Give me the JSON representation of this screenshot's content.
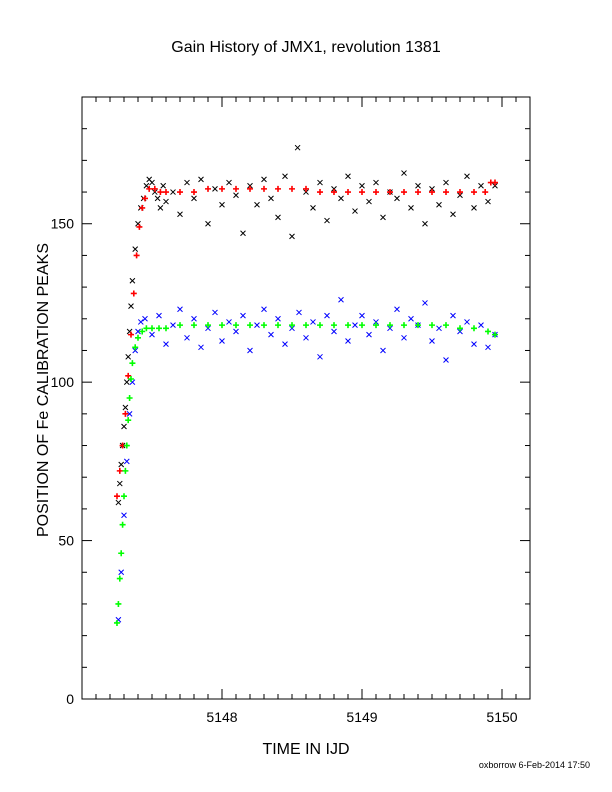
{
  "chart_data": {
    "type": "scatter",
    "title": "Gain History of JMX1, revolution 1381",
    "xlabel": "TIME IN IJD",
    "ylabel": "POSITION OF Fe CALIBRATION PEAKS",
    "xlim": [
      5147.0,
      5150.2
    ],
    "ylim": [
      0,
      190
    ],
    "x_ticks": [
      5148,
      5149,
      5150
    ],
    "y_ticks": [
      0,
      50,
      100,
      150
    ],
    "grid": false,
    "series": [
      {
        "marker": "x",
        "color": "#000000",
        "description": "high peak measurements",
        "x": [
          5147.26,
          5147.27,
          5147.28,
          5147.29,
          5147.3,
          5147.31,
          5147.32,
          5147.33,
          5147.34,
          5147.35,
          5147.36,
          5147.38,
          5147.4,
          5147.42,
          5147.44,
          5147.46,
          5147.48,
          5147.5,
          5147.52,
          5147.54,
          5147.56,
          5147.58,
          5147.6,
          5147.65,
          5147.7,
          5147.75,
          5147.8,
          5147.85,
          5147.9,
          5147.95,
          5148.0,
          5148.05,
          5148.1,
          5148.15,
          5148.2,
          5148.25,
          5148.3,
          5148.35,
          5148.4,
          5148.45,
          5148.5,
          5148.54,
          5148.6,
          5148.65,
          5148.7,
          5148.75,
          5148.8,
          5148.85,
          5148.9,
          5148.95,
          5149.0,
          5149.05,
          5149.1,
          5149.15,
          5149.2,
          5149.25,
          5149.3,
          5149.35,
          5149.4,
          5149.45,
          5149.5,
          5149.55,
          5149.6,
          5149.65,
          5149.7,
          5149.75,
          5149.8,
          5149.85,
          5149.9,
          5149.95
        ],
        "y": [
          62,
          68,
          74,
          80,
          86,
          92,
          100,
          108,
          116,
          124,
          132,
          142,
          150,
          155,
          158,
          162,
          164,
          163,
          160,
          158,
          155,
          162,
          157,
          160,
          153,
          163,
          158,
          164,
          150,
          161,
          156,
          163,
          159,
          147,
          162,
          156,
          164,
          158,
          152,
          165,
          146,
          174,
          160,
          155,
          163,
          151,
          161,
          158,
          165,
          154,
          162,
          157,
          163,
          152,
          160,
          158,
          166,
          155,
          162,
          150,
          161,
          156,
          163,
          153,
          159,
          165,
          155,
          162,
          157,
          162
        ]
      },
      {
        "marker": "x",
        "color": "#0000ff",
        "description": "low peak measurements",
        "x": [
          5147.26,
          5147.28,
          5147.3,
          5147.32,
          5147.34,
          5147.36,
          5147.38,
          5147.4,
          5147.42,
          5147.45,
          5147.5,
          5147.55,
          5147.6,
          5147.65,
          5147.7,
          5147.75,
          5147.8,
          5147.85,
          5147.9,
          5147.95,
          5148.0,
          5148.05,
          5148.1,
          5148.15,
          5148.2,
          5148.25,
          5148.3,
          5148.35,
          5148.4,
          5148.45,
          5148.5,
          5148.55,
          5148.6,
          5148.65,
          5148.7,
          5148.75,
          5148.8,
          5148.85,
          5148.9,
          5148.95,
          5149.0,
          5149.05,
          5149.1,
          5149.15,
          5149.2,
          5149.25,
          5149.3,
          5149.35,
          5149.4,
          5149.45,
          5149.5,
          5149.55,
          5149.6,
          5149.65,
          5149.7,
          5149.75,
          5149.8,
          5149.85,
          5149.9,
          5149.95
        ],
        "y": [
          25,
          40,
          58,
          75,
          90,
          100,
          110,
          116,
          119,
          120,
          115,
          121,
          112,
          118,
          123,
          114,
          120,
          111,
          117,
          122,
          113,
          119,
          116,
          121,
          110,
          118,
          123,
          115,
          120,
          112,
          117,
          122,
          114,
          119,
          108,
          121,
          116,
          126,
          113,
          118,
          121,
          115,
          119,
          110,
          117,
          123,
          114,
          120,
          118,
          125,
          113,
          117,
          107,
          121,
          116,
          119,
          112,
          118,
          111,
          115
        ]
      },
      {
        "marker": "+",
        "color": "#ff0000",
        "description": "high peak fit",
        "x": [
          5147.25,
          5147.27,
          5147.29,
          5147.31,
          5147.33,
          5147.35,
          5147.37,
          5147.39,
          5147.41,
          5147.43,
          5147.45,
          5147.48,
          5147.52,
          5147.56,
          5147.6,
          5147.7,
          5147.8,
          5147.9,
          5148.0,
          5148.1,
          5148.2,
          5148.3,
          5148.4,
          5148.5,
          5148.6,
          5148.7,
          5148.8,
          5148.9,
          5149.0,
          5149.1,
          5149.2,
          5149.3,
          5149.4,
          5149.5,
          5149.6,
          5149.7,
          5149.8,
          5149.88,
          5149.92,
          5149.95
        ],
        "y": [
          64,
          72,
          80,
          90,
          102,
          115,
          128,
          140,
          149,
          155,
          158,
          161,
          161,
          160,
          160,
          160,
          160,
          161,
          161,
          161,
          161,
          161,
          161,
          161,
          161,
          160,
          160,
          160,
          160,
          160,
          160,
          160,
          160,
          160,
          160,
          160,
          160,
          160,
          163,
          163
        ]
      },
      {
        "marker": "+",
        "color": "#00ff00",
        "description": "low peak fit",
        "x": [
          5147.25,
          5147.26,
          5147.27,
          5147.28,
          5147.29,
          5147.3,
          5147.31,
          5147.32,
          5147.33,
          5147.34,
          5147.35,
          5147.36,
          5147.38,
          5147.4,
          5147.43,
          5147.46,
          5147.5,
          5147.55,
          5147.6,
          5147.7,
          5147.8,
          5147.9,
          5148.0,
          5148.1,
          5148.2,
          5148.3,
          5148.4,
          5148.5,
          5148.6,
          5148.7,
          5148.8,
          5148.9,
          5149.0,
          5149.1,
          5149.2,
          5149.3,
          5149.4,
          5149.5,
          5149.6,
          5149.7,
          5149.8,
          5149.9,
          5149.95
        ],
        "y": [
          24,
          30,
          38,
          46,
          55,
          64,
          72,
          80,
          88,
          95,
          101,
          106,
          111,
          114,
          116,
          117,
          117,
          117,
          117,
          118,
          118,
          118,
          118,
          118,
          118,
          118,
          118,
          118,
          118,
          118,
          118,
          118,
          118,
          118,
          118,
          118,
          118,
          118,
          118,
          117,
          117,
          116,
          115
        ]
      }
    ]
  },
  "footer": "oxborrow 6-Feb-2014 17:50"
}
